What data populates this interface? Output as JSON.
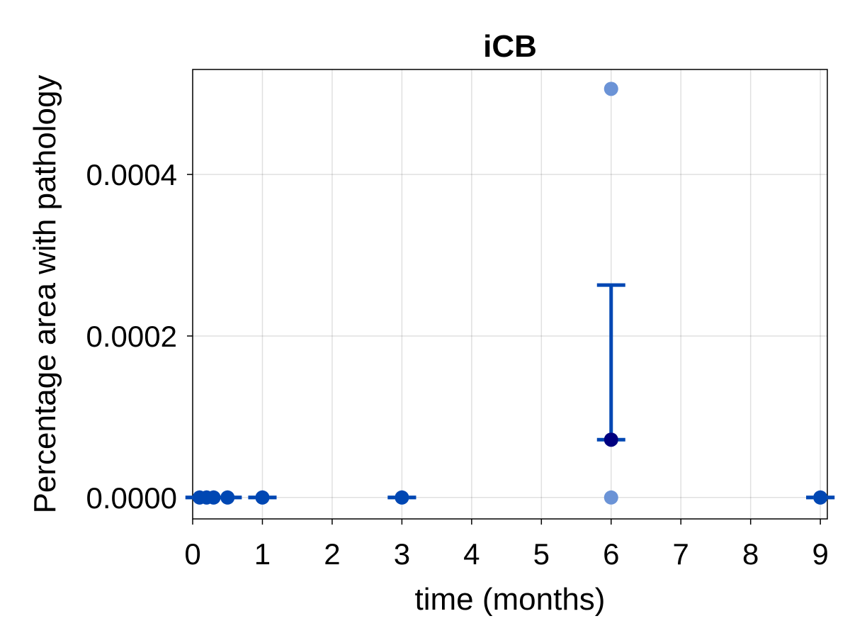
{
  "chart_data": {
    "type": "scatter",
    "title": "iCB",
    "xlabel": "time (months)",
    "ylabel": "Percentage area with pathology",
    "xlim": [
      0,
      9.1
    ],
    "ylim": [
      -2.65e-05,
      0.00053
    ],
    "x_ticks": [
      0,
      1,
      2,
      3,
      4,
      5,
      6,
      7,
      8,
      9
    ],
    "x_tick_labels": [
      "0",
      "1",
      "2",
      "3",
      "4",
      "5",
      "6",
      "7",
      "8",
      "9"
    ],
    "y_ticks": [
      0,
      0.0002,
      0.0004
    ],
    "y_tick_labels": [
      "0.0000",
      "0.0002",
      "0.0004"
    ],
    "grid": true,
    "colors": {
      "point": "#0047b3",
      "point_light": "#6b93d6",
      "mean": "#000080",
      "errorbar": "#0047b3"
    },
    "points": [
      {
        "x": 0.1,
        "y": 0
      },
      {
        "x": 0.2,
        "y": 0
      },
      {
        "x": 0.3,
        "y": 0
      },
      {
        "x": 0.5,
        "y": 0
      },
      {
        "x": 1,
        "y": 0
      },
      {
        "x": 3,
        "y": 0
      },
      {
        "x": 6,
        "y": 0
      },
      {
        "x": 6,
        "y": 7.16e-05
      },
      {
        "x": 6,
        "y": 0.000506
      },
      {
        "x": 9,
        "y": 0
      }
    ],
    "means": [
      {
        "x": 0.1,
        "y": 0
      },
      {
        "x": 0.2,
        "y": 0
      },
      {
        "x": 0.3,
        "y": 0
      },
      {
        "x": 0.5,
        "y": 0
      },
      {
        "x": 1,
        "y": 0
      },
      {
        "x": 3,
        "y": 0
      },
      {
        "x": 6,
        "y": 7.16e-05
      },
      {
        "x": 9,
        "y": 0
      }
    ],
    "error_bars": [
      {
        "x": 0.1,
        "low": 0,
        "high": 0
      },
      {
        "x": 0.2,
        "low": 0,
        "high": 0
      },
      {
        "x": 0.3,
        "low": 0,
        "high": 0
      },
      {
        "x": 0.5,
        "low": 0,
        "high": 0
      },
      {
        "x": 1,
        "low": 0,
        "high": 0
      },
      {
        "x": 3,
        "low": 0,
        "high": 0
      },
      {
        "x": 6,
        "low": 7.16e-05,
        "high": 0.000263
      },
      {
        "x": 9,
        "low": 0,
        "high": 0
      }
    ]
  }
}
